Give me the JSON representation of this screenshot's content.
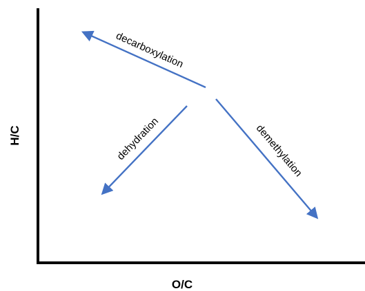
{
  "diagram": {
    "x_axis_label": "O/C",
    "y_axis_label": "H/C",
    "arrow_color": "#4472C4",
    "arrows": [
      {
        "label": "decarboxylation",
        "direction": "up-left (lower O/C, higher H/C)"
      },
      {
        "label": "dehydration",
        "direction": "down-left (lower O/C, lower H/C)"
      },
      {
        "label": "demethylation",
        "direction": "down-right (higher O/C, lower H/C)"
      }
    ]
  }
}
